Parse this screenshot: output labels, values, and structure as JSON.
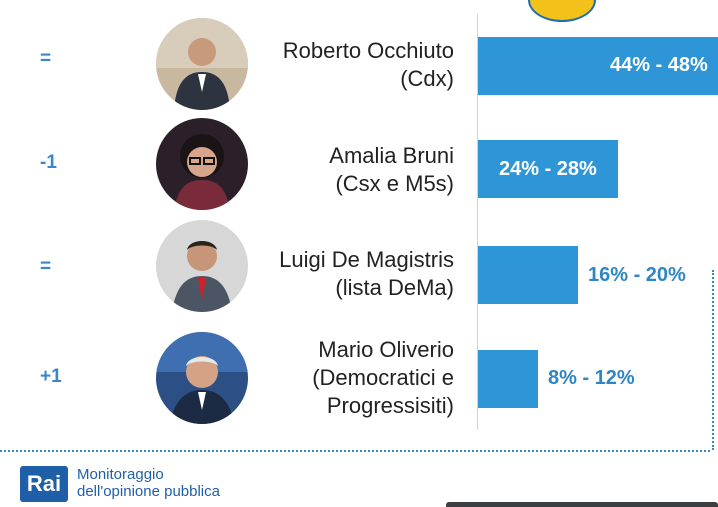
{
  "chart_data": {
    "type": "bar",
    "orientation": "horizontal",
    "categories": [
      "Roberto Occhiuto (Cdx)",
      "Amalia Bruni (Csx e M5s)",
      "Luigi De Magistris (lista DeMa)",
      "Mario Oliverio (Democratici e Progressisiti)"
    ],
    "ranges": [
      [
        44,
        48
      ],
      [
        24,
        28
      ],
      [
        16,
        20
      ],
      [
        8,
        12
      ]
    ],
    "xlim": [
      0,
      48
    ],
    "grid": false,
    "rows": [
      {
        "change": "=",
        "name_lines": [
          "Roberto Occhiuto",
          "(Cdx)"
        ],
        "range_label": "44% - 48%",
        "min": 44,
        "max": 48,
        "label_inside": true
      },
      {
        "change": "-1",
        "name_lines": [
          "Amalia Bruni",
          "(Csx e M5s)"
        ],
        "range_label": "24% - 28%",
        "min": 24,
        "max": 28,
        "label_inside": true
      },
      {
        "change": "=",
        "name_lines": [
          "Luigi De Magistris",
          "(lista DeMa)"
        ],
        "range_label": "16% - 20%",
        "min": 16,
        "max": 20,
        "label_inside": false
      },
      {
        "change": "+1",
        "name_lines": [
          "Mario Oliverio",
          "(Democratici e",
          "Progressisiti)"
        ],
        "range_label": "8% - 12%",
        "min": 8,
        "max": 12,
        "label_inside": false
      }
    ]
  },
  "footer": {
    "logo_text": "Rai",
    "line1": "Monitoraggio",
    "line2": "dell'opinione pubblica"
  },
  "colors": {
    "bar": "#2e96d6",
    "accent_text": "#3a86c8",
    "brand": "#1f5fa8"
  }
}
